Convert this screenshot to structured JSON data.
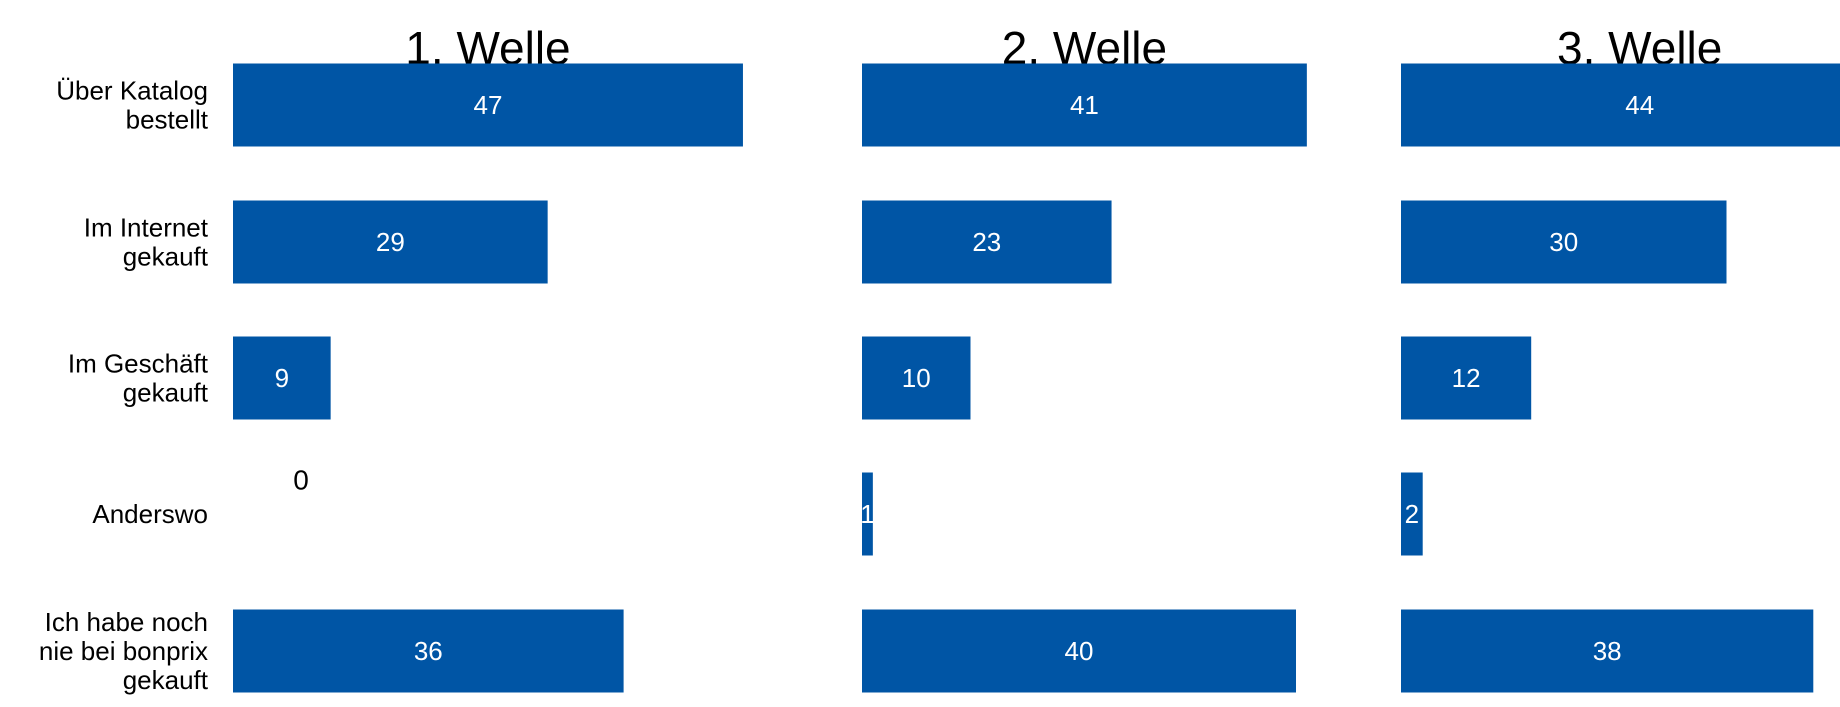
{
  "chart_data": {
    "type": "bar",
    "orientation": "horizontal",
    "categories": [
      [
        "Über Katalog",
        "bestellt"
      ],
      [
        "Im Internet",
        "gekauft"
      ],
      [
        "Im Geschäft",
        "gekauft"
      ],
      [
        "Anderswo"
      ],
      [
        "Ich habe noch",
        "nie bei bonprix",
        "gekauft"
      ]
    ],
    "series": [
      {
        "name": "1. Welle",
        "values": [
          47,
          29,
          9,
          0,
          36
        ]
      },
      {
        "name": "2. Welle",
        "values": [
          41,
          23,
          10,
          1,
          40
        ]
      },
      {
        "name": "3. Welle",
        "values": [
          44,
          30,
          12,
          2,
          38
        ]
      }
    ],
    "bar_color": "#0055a5",
    "grid": false,
    "legend": "none",
    "data_labels": true
  }
}
